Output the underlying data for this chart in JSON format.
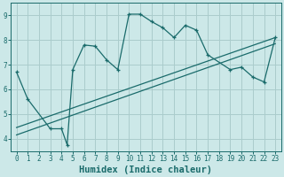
{
  "xlabel": "Humidex (Indice chaleur)",
  "bg_color": "#cce8e8",
  "grid_color": "#aacccc",
  "line_color": "#1a6b6b",
  "curve_x": [
    0,
    1,
    3,
    4,
    4.5,
    5,
    6,
    7,
    8,
    9,
    10,
    11,
    12,
    13,
    14,
    15,
    16,
    17,
    19,
    20,
    21,
    22,
    23
  ],
  "curve_y": [
    6.7,
    5.6,
    4.4,
    4.4,
    3.75,
    6.8,
    7.8,
    7.75,
    7.2,
    6.8,
    9.05,
    9.05,
    8.75,
    8.5,
    8.1,
    8.6,
    8.4,
    7.4,
    6.8,
    6.9,
    6.5,
    6.3,
    8.1
  ],
  "trend1_x": [
    0,
    23
  ],
  "trend1_y": [
    4.15,
    7.85
  ],
  "trend2_x": [
    0,
    23
  ],
  "trend2_y": [
    4.45,
    8.1
  ],
  "xlim": [
    -0.5,
    23.5
  ],
  "ylim": [
    3.5,
    9.5
  ],
  "xticks": [
    0,
    1,
    2,
    3,
    4,
    5,
    6,
    7,
    8,
    9,
    10,
    11,
    12,
    13,
    14,
    15,
    16,
    17,
    18,
    19,
    20,
    21,
    22,
    23
  ],
  "yticks": [
    4,
    5,
    6,
    7,
    8,
    9
  ],
  "tick_fontsize": 5.5,
  "xlabel_fontsize": 7.5
}
